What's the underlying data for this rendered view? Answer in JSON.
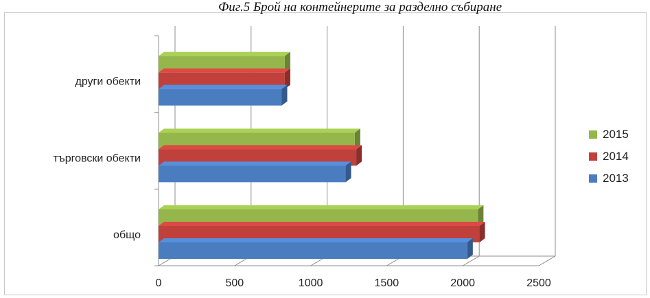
{
  "caption": "Фиг.5 Брой на контейнерите за разделно събиране",
  "chart_data": {
    "type": "bar",
    "orientation": "horizontal",
    "style": "3d",
    "categories": [
      "общо",
      "търговски обекти",
      "други обекти"
    ],
    "series": [
      {
        "name": "2013",
        "color": "#4a7dc0",
        "values": [
          2030,
          1230,
          810
        ]
      },
      {
        "name": "2014",
        "color": "#c0403c",
        "values": [
          2110,
          1300,
          830
        ]
      },
      {
        "name": "2015",
        "color": "#94b64a",
        "values": [
          2100,
          1290,
          830
        ]
      }
    ],
    "x_ticks": [
      "0",
      "500",
      "1000",
      "1500",
      "2000",
      "2500"
    ],
    "xlim": [
      0,
      2500
    ],
    "grid": "vertical",
    "legend_position": "right"
  }
}
